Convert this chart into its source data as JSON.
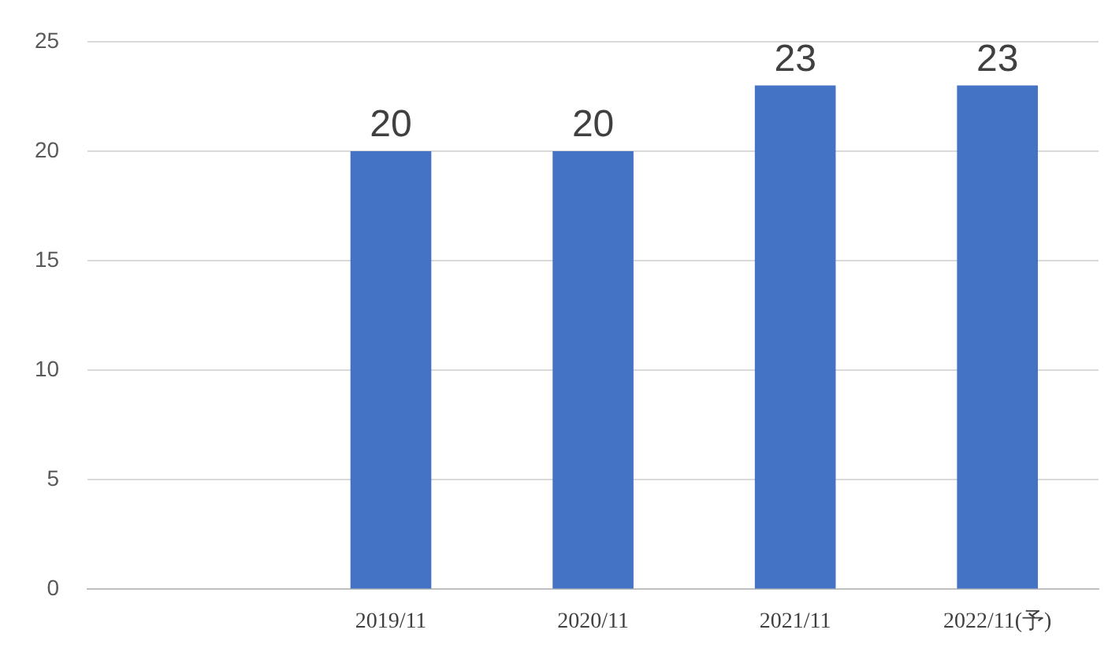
{
  "chart_data": {
    "type": "bar",
    "categories": [
      null,
      "2019/11",
      "2020/11",
      "2021/11",
      "2022/11(予)"
    ],
    "values": [
      null,
      20,
      20,
      23,
      23
    ],
    "color": "#4472c4",
    "ylim": [
      0,
      25
    ],
    "yticks": [
      0,
      5,
      10,
      15,
      20,
      25
    ],
    "grid": "y",
    "data_labels": true
  }
}
